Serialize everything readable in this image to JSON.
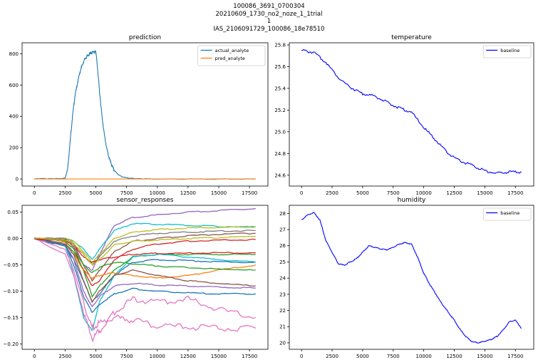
{
  "suptitle": [
    "100086_3691_0700304",
    "20210609_1730_no2_noze_1_1trial",
    "1",
    "IAS_2106091729_100086_18e78510"
  ],
  "colors": {
    "actual": "#1f77b4",
    "pred": "#ff7f0e",
    "baseline": "#0000ff",
    "tab10": [
      "#1f77b4",
      "#ff7f0e",
      "#2ca02c",
      "#d62728",
      "#9467bd",
      "#8c564b",
      "#e377c2",
      "#7f7f7f",
      "#bcbd22",
      "#17becf"
    ]
  },
  "chart_data": [
    {
      "type": "line",
      "title": "prediction",
      "xlabel": "",
      "ylabel": "",
      "xlim": [
        -1000,
        19000
      ],
      "ylim": [
        -45,
        870
      ],
      "xticks": [
        0,
        2500,
        5000,
        7500,
        10000,
        12500,
        15000,
        17500
      ],
      "yticks": [
        0,
        200,
        400,
        600,
        800
      ],
      "legend": "top-right",
      "series": [
        {
          "name": "actual_analyte",
          "color": "#1f77b4",
          "x": [
            0,
            500,
            1000,
            1500,
            2000,
            2500,
            2700,
            2900,
            3100,
            3300,
            3500,
            3700,
            3900,
            4100,
            4300,
            4500,
            4700,
            4900,
            5000,
            5100,
            5300,
            5500,
            5700,
            5900,
            6100,
            6300,
            6500,
            6800,
            7100,
            7500,
            8000,
            8500,
            9000,
            10000,
            12000,
            14000,
            16000,
            18000
          ],
          "y": [
            0,
            3,
            2,
            2,
            3,
            5,
            60,
            230,
            400,
            530,
            610,
            680,
            730,
            765,
            785,
            800,
            808,
            812,
            815,
            740,
            560,
            400,
            280,
            190,
            130,
            85,
            55,
            30,
            15,
            8,
            4,
            2,
            1,
            0,
            0,
            0,
            0,
            0
          ]
        },
        {
          "name": "pred_analyte",
          "color": "#ff7f0e",
          "x": [
            0,
            18000
          ],
          "y": [
            0,
            0
          ]
        }
      ]
    },
    {
      "type": "line",
      "title": "temperature",
      "xlabel": "",
      "ylabel": "",
      "xlim": [
        -1000,
        19000
      ],
      "ylim": [
        24.5,
        25.82
      ],
      "xticks": [
        0,
        2500,
        5000,
        7500,
        10000,
        12500,
        15000,
        17500
      ],
      "yticks": [
        24.6,
        24.8,
        25.0,
        25.2,
        25.4,
        25.6,
        25.8
      ],
      "legend": "top-right",
      "series": [
        {
          "name": "baseline",
          "color": "#0000ff",
          "x": [
            0,
            1000,
            2000,
            3000,
            4000,
            5000,
            6000,
            7000,
            8000,
            9000,
            10000,
            11000,
            12000,
            13000,
            14000,
            15000,
            16000,
            17000,
            18000
          ],
          "y": [
            25.75,
            25.73,
            25.64,
            25.5,
            25.41,
            25.35,
            25.33,
            25.27,
            25.22,
            25.18,
            25.04,
            24.92,
            24.8,
            24.73,
            24.69,
            24.64,
            24.62,
            24.63,
            24.63
          ]
        }
      ]
    },
    {
      "type": "line",
      "title": "sensor_responses",
      "xlabel": "",
      "ylabel": "",
      "xlim": [
        -1000,
        19000
      ],
      "ylim": [
        -0.21,
        0.063
      ],
      "xticks": [
        0,
        2500,
        5000,
        7500,
        10000,
        12500,
        15000,
        17500
      ],
      "yticks": [
        -0.2,
        -0.15,
        -0.1,
        -0.05,
        0.0,
        0.05
      ],
      "legend": "none",
      "x": [
        0,
        2500,
        3200,
        4000,
        4700,
        5300,
        6500,
        8000,
        10000,
        12500,
        15000,
        18000
      ],
      "series": [
        {
          "color": "#9467bd",
          "values": [
            0,
            0,
            -0.01,
            -0.05,
            -0.06,
            -0.03,
            0.025,
            0.04,
            0.045,
            0.05,
            0.053,
            0.057
          ]
        },
        {
          "color": "#17becf",
          "values": [
            0,
            0,
            -0.005,
            -0.02,
            -0.04,
            -0.02,
            0.015,
            0.028,
            0.027,
            0.025,
            0.023,
            0.022
          ]
        },
        {
          "color": "#bcbd22",
          "values": [
            0,
            0,
            -0.005,
            -0.025,
            -0.045,
            -0.03,
            0.0,
            0.012,
            0.017,
            0.02,
            0.021,
            0.022
          ]
        },
        {
          "color": "#7f7f7f",
          "values": [
            0,
            0,
            -0.01,
            -0.03,
            -0.05,
            -0.035,
            -0.005,
            0.005,
            0.01,
            0.012,
            0.014,
            0.015
          ]
        },
        {
          "color": "#8c564b",
          "values": [
            0,
            -0.002,
            -0.015,
            -0.05,
            -0.08,
            -0.06,
            -0.025,
            -0.005,
            0.0,
            0.005,
            0.008,
            0.01
          ]
        },
        {
          "color": "#d62728",
          "values": [
            0,
            -0.005,
            -0.02,
            -0.06,
            -0.09,
            -0.08,
            -0.04,
            -0.02,
            -0.01,
            -0.005,
            -0.003,
            -0.002
          ]
        },
        {
          "color": "#2ca02c",
          "values": [
            0,
            -0.01,
            -0.025,
            -0.06,
            -0.11,
            -0.09,
            -0.06,
            -0.035,
            -0.03,
            -0.03,
            -0.03,
            -0.03
          ]
        },
        {
          "color": "#1f77b4",
          "values": [
            0,
            -0.015,
            -0.04,
            -0.08,
            -0.12,
            -0.105,
            -0.07,
            -0.045,
            -0.04,
            -0.042,
            -0.044,
            -0.045
          ]
        },
        {
          "color": "#17becf",
          "values": [
            0,
            -0.01,
            -0.07,
            -0.15,
            -0.175,
            -0.12,
            -0.07,
            -0.035,
            -0.03,
            -0.035,
            -0.04,
            -0.045
          ]
        },
        {
          "color": "#ff7f0e",
          "values": [
            0,
            -0.008,
            -0.03,
            -0.06,
            -0.075,
            -0.07,
            -0.065,
            -0.07,
            -0.075,
            -0.07,
            -0.06,
            -0.05
          ]
        },
        {
          "color": "#e377c2",
          "values": [
            0,
            -0.02,
            -0.06,
            -0.12,
            -0.17,
            -0.16,
            -0.15,
            -0.155,
            -0.165,
            -0.168,
            -0.17,
            -0.17
          ]
        },
        {
          "color": "#e377c2",
          "values": [
            0,
            -0.03,
            -0.07,
            -0.14,
            -0.19,
            -0.175,
            -0.14,
            -0.115,
            -0.12,
            -0.115,
            -0.135,
            -0.15
          ]
        },
        {
          "color": "#9467bd",
          "values": [
            0,
            -0.01,
            -0.04,
            -0.1,
            -0.13,
            -0.11,
            -0.09,
            -0.085,
            -0.088,
            -0.09,
            -0.092,
            -0.094
          ]
        },
        {
          "color": "#1f77b4",
          "values": [
            0,
            -0.012,
            -0.05,
            -0.11,
            -0.14,
            -0.125,
            -0.105,
            -0.095,
            -0.1,
            -0.103,
            -0.105,
            -0.105
          ]
        },
        {
          "color": "#2ca02c",
          "values": [
            0,
            -0.005,
            -0.02,
            -0.05,
            -0.065,
            -0.055,
            -0.045,
            -0.048,
            -0.052,
            -0.055,
            -0.058,
            -0.06
          ]
        },
        {
          "color": "#8c564b",
          "values": [
            0,
            -0.01,
            -0.03,
            -0.08,
            -0.12,
            -0.1,
            -0.07,
            -0.06,
            -0.07,
            -0.08,
            -0.085,
            -0.09
          ]
        },
        {
          "color": "#d62728",
          "values": [
            0,
            -0.004,
            -0.012,
            -0.035,
            -0.045,
            -0.04,
            -0.035,
            -0.03,
            -0.028,
            -0.028,
            -0.027,
            -0.027
          ]
        },
        {
          "color": "#bcbd22",
          "values": [
            0,
            -0.003,
            -0.01,
            -0.03,
            -0.05,
            -0.04,
            -0.012,
            -0.005,
            -0.003,
            0.0,
            0.002,
            0.004
          ]
        }
      ]
    },
    {
      "type": "line",
      "title": "humidity",
      "xlabel": "",
      "ylabel": "",
      "xlim": [
        -1000,
        19000
      ],
      "ylim": [
        19.6,
        28.5
      ],
      "xticks": [
        0,
        2500,
        5000,
        7500,
        10000,
        12500,
        15000,
        17500
      ],
      "yticks": [
        20,
        21,
        22,
        23,
        24,
        25,
        26,
        27,
        28
      ],
      "legend": "top-right",
      "series": [
        {
          "name": "baseline",
          "color": "#0000ff",
          "x": [
            0,
            500,
            1000,
            1500,
            2000,
            2500,
            3000,
            3500,
            4000,
            4500,
            5000,
            5500,
            6000,
            6500,
            7000,
            7500,
            8000,
            8500,
            9000,
            9500,
            10000,
            10500,
            11000,
            11500,
            12000,
            12500,
            13000,
            13500,
            14000,
            14500,
            15000,
            15500,
            16000,
            16500,
            17000,
            17500,
            18000
          ],
          "y": [
            27.6,
            27.9,
            28.05,
            27.6,
            26.3,
            25.6,
            24.9,
            24.8,
            25.0,
            25.2,
            25.6,
            26.0,
            25.9,
            25.8,
            25.75,
            25.9,
            26.1,
            26.2,
            26.1,
            25.3,
            24.3,
            23.6,
            23.0,
            22.4,
            21.9,
            21.4,
            20.8,
            20.35,
            20.05,
            20.0,
            20.1,
            20.2,
            20.4,
            20.8,
            21.3,
            21.4,
            20.9
          ]
        }
      ]
    }
  ]
}
